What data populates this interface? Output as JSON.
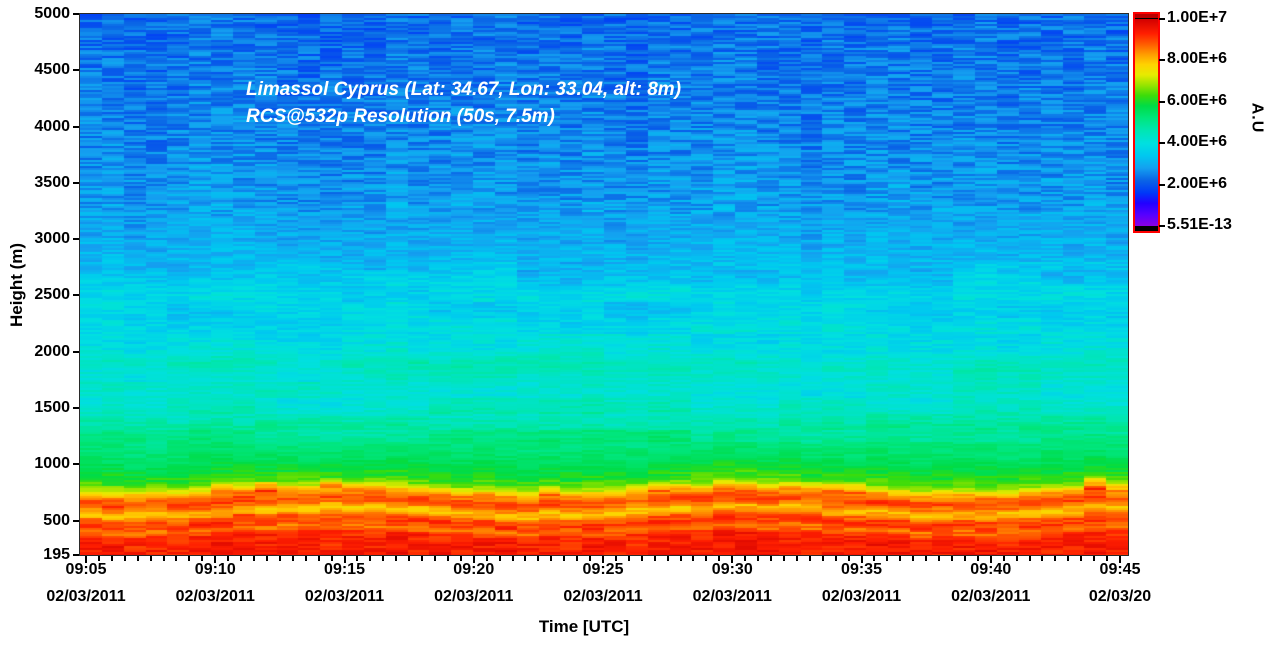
{
  "figure": {
    "background": "#ffffff",
    "annotation": {
      "line1": "Limassol Cyprus (Lat: 34.67, Lon: 33.04, alt: 8m)",
      "line2": "RCS@532p Resolution (50s, 7.5m)",
      "color": "#ffffff"
    }
  },
  "chart_data": {
    "type": "heatmap",
    "title": "Lidar range-corrected signal time-height plot",
    "station": {
      "name": "Limassol Cyprus",
      "lat": 34.67,
      "lon": 33.04,
      "alt_m": 8
    },
    "channel": "RCS@532p",
    "profile_resolution_seconds": 50,
    "height_resolution_m": 7.5,
    "xlabel": "Time [UTC]",
    "ylabel": "Height (m)",
    "x_ticks": [
      {
        "time": "09:05",
        "date": "02/03/2011"
      },
      {
        "time": "09:10",
        "date": "02/03/2011"
      },
      {
        "time": "09:15",
        "date": "02/03/2011"
      },
      {
        "time": "09:20",
        "date": "02/03/2011"
      },
      {
        "time": "09:25",
        "date": "02/03/2011"
      },
      {
        "time": "09:30",
        "date": "02/03/2011"
      },
      {
        "time": "09:35",
        "date": "02/03/2011"
      },
      {
        "time": "09:40",
        "date": "02/03/2011"
      },
      {
        "time": "09:45",
        "date": "02/03/20"
      }
    ],
    "x_minor_per_major": 10,
    "time_span_minutes": 40,
    "y_ticks": [
      "5000",
      "4500",
      "4000",
      "3500",
      "3000",
      "2500",
      "2000",
      "1500",
      "1000",
      "500",
      "195"
    ],
    "y_range": [
      195,
      5000
    ],
    "grid": false,
    "colorbar": {
      "label": "A.U",
      "ticks": [
        "1.00E+7",
        "8.00E+6",
        "6.00E+6",
        "4.00E+6",
        "2.00E+6",
        "5.51E-13"
      ],
      "tick_values": [
        10000000,
        8000000,
        6000000,
        4000000,
        2000000,
        5.51e-13
      ],
      "max": 10000000,
      "min": 5.51e-13,
      "border_color": "#ff0000",
      "over_color": "#b80000",
      "under_color": "#000000"
    },
    "colormap": [
      [
        0.0,
        "#8a00e0"
      ],
      [
        0.055,
        "#5500ff"
      ],
      [
        0.11,
        "#2200ff"
      ],
      [
        0.16,
        "#0038f8"
      ],
      [
        0.22,
        "#0a64e6"
      ],
      [
        0.28,
        "#14a0f0"
      ],
      [
        0.34,
        "#00c8f0"
      ],
      [
        0.4,
        "#00e0e0"
      ],
      [
        0.46,
        "#00e6b4"
      ],
      [
        0.52,
        "#00e67d"
      ],
      [
        0.58,
        "#00dc46"
      ],
      [
        0.63,
        "#3cdc0a"
      ],
      [
        0.68,
        "#96e400"
      ],
      [
        0.73,
        "#e6eb00"
      ],
      [
        0.78,
        "#ffd200"
      ],
      [
        0.83,
        "#ff9b00"
      ],
      [
        0.88,
        "#ff5a00"
      ],
      [
        0.93,
        "#ff1e00"
      ],
      [
        1.0,
        "#d20000"
      ]
    ],
    "height_profile": [
      [
        5000,
        0.225
      ],
      [
        4600,
        0.235
      ],
      [
        4200,
        0.245
      ],
      [
        3800,
        0.26
      ],
      [
        3400,
        0.275
      ],
      [
        3000,
        0.3
      ],
      [
        2700,
        0.33
      ],
      [
        2500,
        0.375
      ],
      [
        2350,
        0.36
      ],
      [
        2150,
        0.385
      ],
      [
        2000,
        0.4
      ],
      [
        1900,
        0.445
      ],
      [
        1750,
        0.43
      ],
      [
        1600,
        0.415
      ],
      [
        1450,
        0.45
      ],
      [
        1300,
        0.5
      ],
      [
        1150,
        0.525
      ],
      [
        1050,
        0.55
      ],
      [
        975,
        0.575
      ],
      [
        920,
        0.6
      ],
      [
        865,
        0.625
      ],
      [
        820,
        0.665
      ],
      [
        790,
        0.72
      ],
      [
        765,
        0.79
      ],
      [
        740,
        0.835
      ],
      [
        705,
        0.87
      ],
      [
        665,
        0.895
      ],
      [
        625,
        0.855
      ],
      [
        595,
        0.79
      ],
      [
        560,
        0.81
      ],
      [
        530,
        0.875
      ],
      [
        500,
        0.9
      ],
      [
        465,
        0.905
      ],
      [
        435,
        0.86
      ],
      [
        400,
        0.875
      ],
      [
        370,
        0.925
      ],
      [
        320,
        0.935
      ],
      [
        195,
        0.94
      ]
    ]
  }
}
